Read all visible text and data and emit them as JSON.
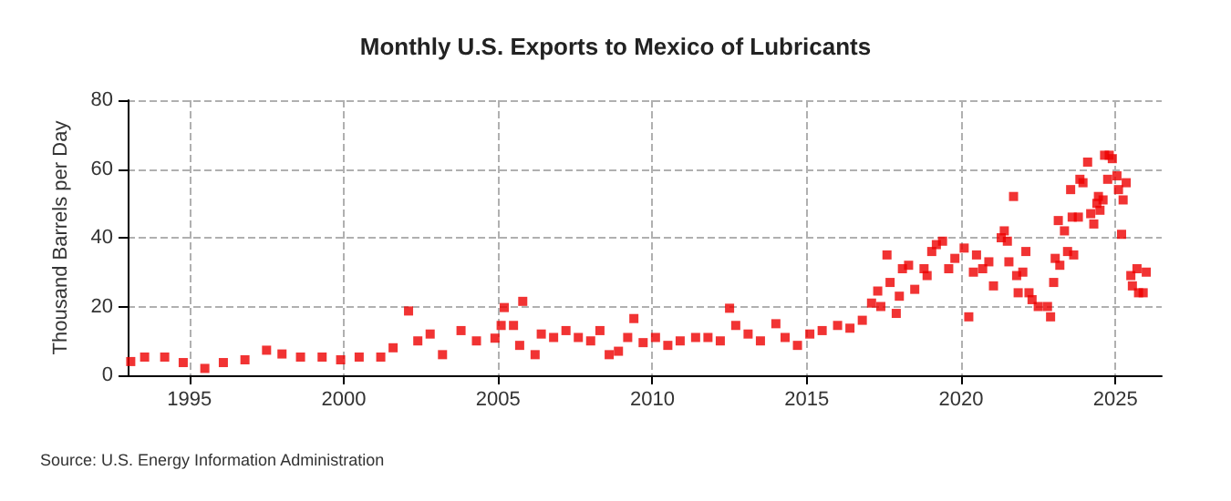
{
  "chart_data": {
    "type": "scatter",
    "title": "Monthly U.S. Exports to Mexico of Lubricants",
    "ylabel": "Thousand Barrels per Day",
    "annotations": [
      "Source: U.S. Energy Information Administration"
    ],
    "x": [
      1993.1,
      1993.55,
      1994.2,
      1994.8,
      1995.5,
      1996.1,
      1996.8,
      1997.5,
      1998.0,
      1998.6,
      1999.3,
      1999.9,
      2000.5,
      2001.2,
      2001.6,
      2002.1,
      2002.4,
      2002.8,
      2003.2,
      2003.8,
      2004.3,
      2004.9,
      2005.1,
      2005.2,
      2005.5,
      2005.7,
      2005.8,
      2006.2,
      2006.4,
      2006.8,
      2007.2,
      2007.6,
      2008.0,
      2008.3,
      2008.6,
      2008.9,
      2009.2,
      2009.4,
      2009.7,
      2010.1,
      2010.5,
      2010.9,
      2011.4,
      2011.8,
      2012.2,
      2012.5,
      2012.7,
      2013.1,
      2013.5,
      2014.0,
      2014.3,
      2014.7,
      2015.1,
      2015.5,
      2016.0,
      2016.4,
      2016.8,
      2017.1,
      2017.3,
      2017.4,
      2017.6,
      2017.7,
      2017.9,
      2018.0,
      2018.1,
      2018.3,
      2018.5,
      2018.8,
      2018.9,
      2019.05,
      2019.2,
      2019.4,
      2019.6,
      2019.8,
      2020.1,
      2020.25,
      2020.4,
      2020.5,
      2020.7,
      2020.9,
      2021.05,
      2021.3,
      2021.4,
      2021.5,
      2021.55,
      2021.7,
      2021.8,
      2021.85,
      2022.0,
      2022.1,
      2022.2,
      2022.3,
      2022.5,
      2022.8,
      2022.9,
      2023.0,
      2023.05,
      2023.15,
      2023.2,
      2023.35,
      2023.45,
      2023.55,
      2023.6,
      2023.65,
      2023.8,
      2023.85,
      2023.95,
      2024.1,
      2024.2,
      2024.3,
      2024.4,
      2024.45,
      2024.5,
      2024.6,
      2024.65,
      2024.75,
      2024.8,
      2024.9,
      2025.05,
      2025.1,
      2025.2,
      2025.25,
      2025.35,
      2025.5,
      2025.55,
      2025.7,
      2025.75,
      2025.9,
      2026.0
    ],
    "series": [
      {
        "color": "#ee0000",
        "values": [
          4,
          5.3,
          5.3,
          3.7,
          2,
          3.7,
          4.5,
          7.3,
          6.2,
          5.3,
          5.3,
          4.5,
          5.3,
          5.3,
          8,
          18.7,
          10,
          12,
          6,
          13,
          10,
          10.8,
          14.5,
          19.7,
          14.5,
          8.7,
          21.5,
          6,
          12,
          11,
          13,
          11,
          10,
          13,
          6,
          7,
          11,
          16.5,
          9.5,
          11,
          8.7,
          10,
          11,
          11,
          10,
          19.5,
          14.5,
          12,
          10,
          15,
          11,
          8.7,
          12,
          13,
          14.5,
          13.7,
          16,
          21,
          24.5,
          20,
          35,
          27,
          18,
          23,
          31,
          32,
          25,
          31,
          29,
          36,
          38,
          39,
          31,
          34,
          37,
          17,
          30,
          35,
          31,
          33,
          26,
          40,
          42,
          39,
          33,
          52,
          29,
          24,
          30,
          36,
          24,
          22,
          20,
          20,
          17,
          27,
          34,
          45,
          32,
          42,
          36,
          54,
          46,
          35,
          46,
          57,
          56,
          62,
          47,
          44,
          50,
          52,
          48,
          51,
          64,
          57,
          64,
          63,
          58,
          54,
          41,
          51,
          56,
          29,
          26,
          31,
          24,
          24,
          30
        ]
      }
    ],
    "xlim": [
      1993,
      2026.5
    ],
    "xticks": [
      1995,
      2000,
      2005,
      2010,
      2015,
      2020,
      2025
    ],
    "ylim": [
      0,
      80
    ],
    "yticks": [
      0,
      20,
      40,
      60,
      80
    ],
    "grid": true,
    "marker": "square"
  }
}
